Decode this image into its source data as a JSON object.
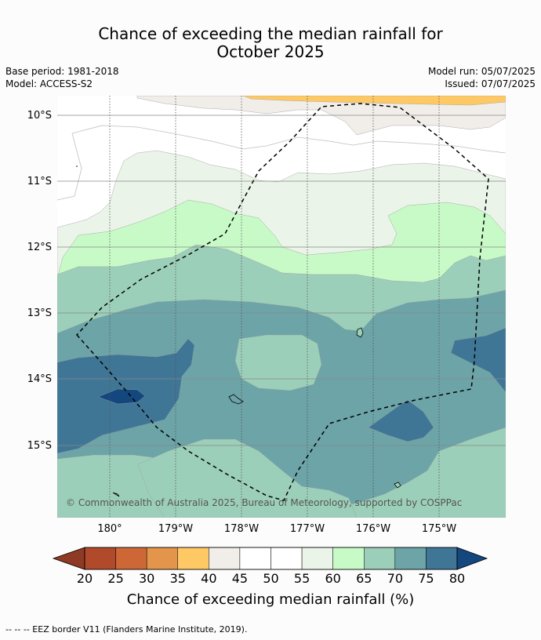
{
  "title": {
    "line1": "Chance of exceeding the median rainfall for",
    "line2": "October 2025"
  },
  "meta_left": {
    "base_period": "Base period: 1981-2018",
    "model": "Model: ACCESS-S2"
  },
  "meta_right": {
    "model_run": "Model run: 05/07/2025",
    "issued": "Issued: 07/07/2025"
  },
  "map": {
    "lat_labels": [
      "10°S",
      "11°S",
      "12°S",
      "13°S",
      "14°S",
      "15°S"
    ],
    "lon_labels": [
      "180°",
      "179°W",
      "178°W",
      "177°W",
      "176°W",
      "175°W"
    ],
    "copyright": "© Commonwealth of Australia 2025, Bureau of Meteorology, supported by COSPPac",
    "background_color": "#ffffff"
  },
  "colorbar": {
    "ticks": [
      "20",
      "25",
      "30",
      "35",
      "40",
      "45",
      "50",
      "55",
      "60",
      "65",
      "70",
      "75",
      "80"
    ],
    "colors": [
      "#8e3a24",
      "#b14a2a",
      "#cd6836",
      "#e3954c",
      "#fec964",
      "#f1ede8",
      "#ffffff",
      "#ffffff",
      "#eaf4e8",
      "#c8fac8",
      "#9ccfb9",
      "#6ca4a8",
      "#3f7696",
      "#14477e"
    ],
    "label": "Chance of exceeding median rainfall (%)"
  },
  "footer": {
    "legend": "--  --  -- EEZ border V11 (Flanders Marine Institute, 2019)."
  }
}
